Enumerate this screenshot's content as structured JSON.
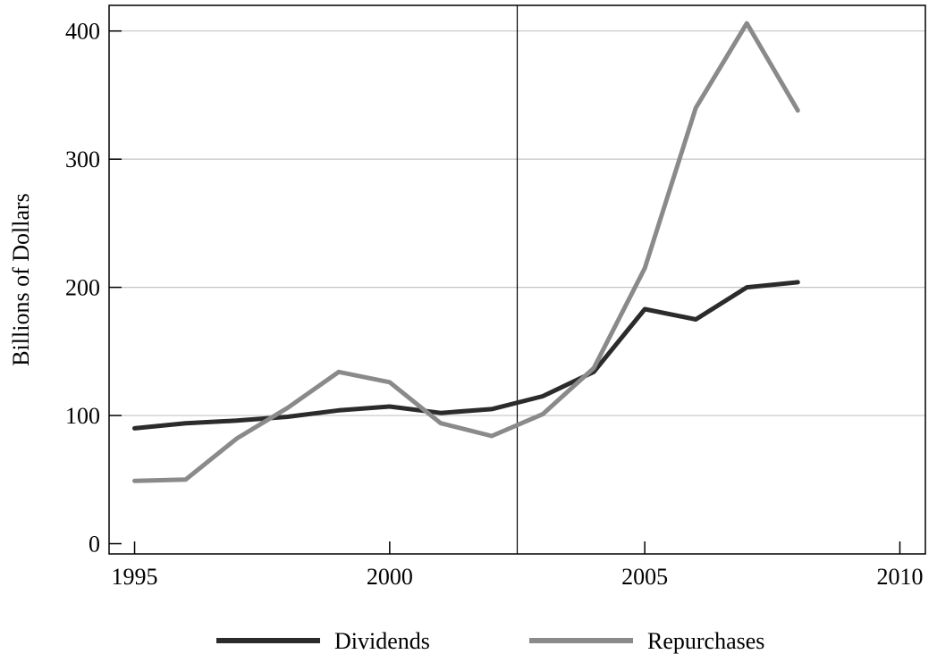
{
  "chart_data": {
    "type": "line",
    "title": "",
    "xlabel": "",
    "ylabel": "Billions of Dollars",
    "xlim": [
      1994.5,
      2010.5
    ],
    "ylim": [
      -8,
      420
    ],
    "x_ticks": [
      1995,
      2000,
      2005,
      2010
    ],
    "x_tick_labels": [
      "1995",
      "2000",
      "2005",
      "2010"
    ],
    "y_ticks": [
      0,
      100,
      200,
      300,
      400
    ],
    "y_tick_labels": [
      "0",
      "100",
      "200",
      "300",
      "400"
    ],
    "grid": "horizontal",
    "vertical_reference_line": 2002.5,
    "legend_position": "bottom",
    "x": [
      1995,
      1996,
      1997,
      1998,
      1999,
      2000,
      2001,
      2002,
      2003,
      2004,
      2005,
      2006,
      2007,
      2008
    ],
    "series": [
      {
        "name": "Dividends",
        "color": "#2b2b2b",
        "values": [
          90,
          94,
          96,
          99,
          104,
          107,
          102,
          105,
          115,
          134,
          183,
          175,
          200,
          204
        ]
      },
      {
        "name": "Repurchases",
        "color": "#8a8a8a",
        "values": [
          49,
          50,
          82,
          106,
          134,
          126,
          94,
          84,
          101,
          137,
          215,
          340,
          406,
          338
        ]
      }
    ]
  }
}
